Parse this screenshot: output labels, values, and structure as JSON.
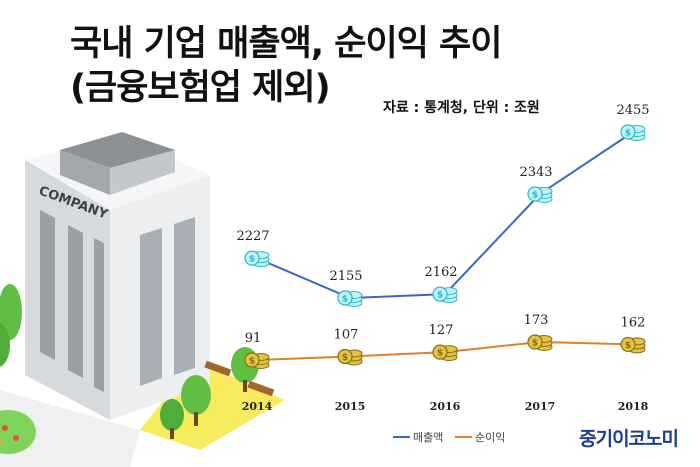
{
  "header": {
    "title_line1": "국내 기업 매출액, 순이익 추이",
    "title_line2": "(금융보험업 제외)",
    "source": "자료 : 통계청, 단위 : 조원"
  },
  "illustration": {
    "building_sign": "COMPANY"
  },
  "brand": "중기이코노미",
  "colors": {
    "revenue": "#3c66c4",
    "profit": "#e07f2c",
    "coin_blue": "#5fd3e0",
    "coin_gold": "#d8b431",
    "lawn": "#f7ec5e",
    "brand": "#1b3f8f"
  },
  "chart_data": {
    "type": "line",
    "categories": [
      "2014",
      "2015",
      "2016",
      "2017",
      "2018"
    ],
    "series": [
      {
        "name": "매출액",
        "values": [
          2227,
          2155,
          2162,
          2343,
          2455
        ],
        "color": "#3c66c4",
        "marker": "coin-blue"
      },
      {
        "name": "순이익",
        "values": [
          91,
          107,
          127,
          173,
          162
        ],
        "color": "#e07f2c",
        "marker": "coin-gold"
      }
    ],
    "legend": "bottom-right",
    "grid": false,
    "xlabel": "",
    "ylabel": ""
  }
}
